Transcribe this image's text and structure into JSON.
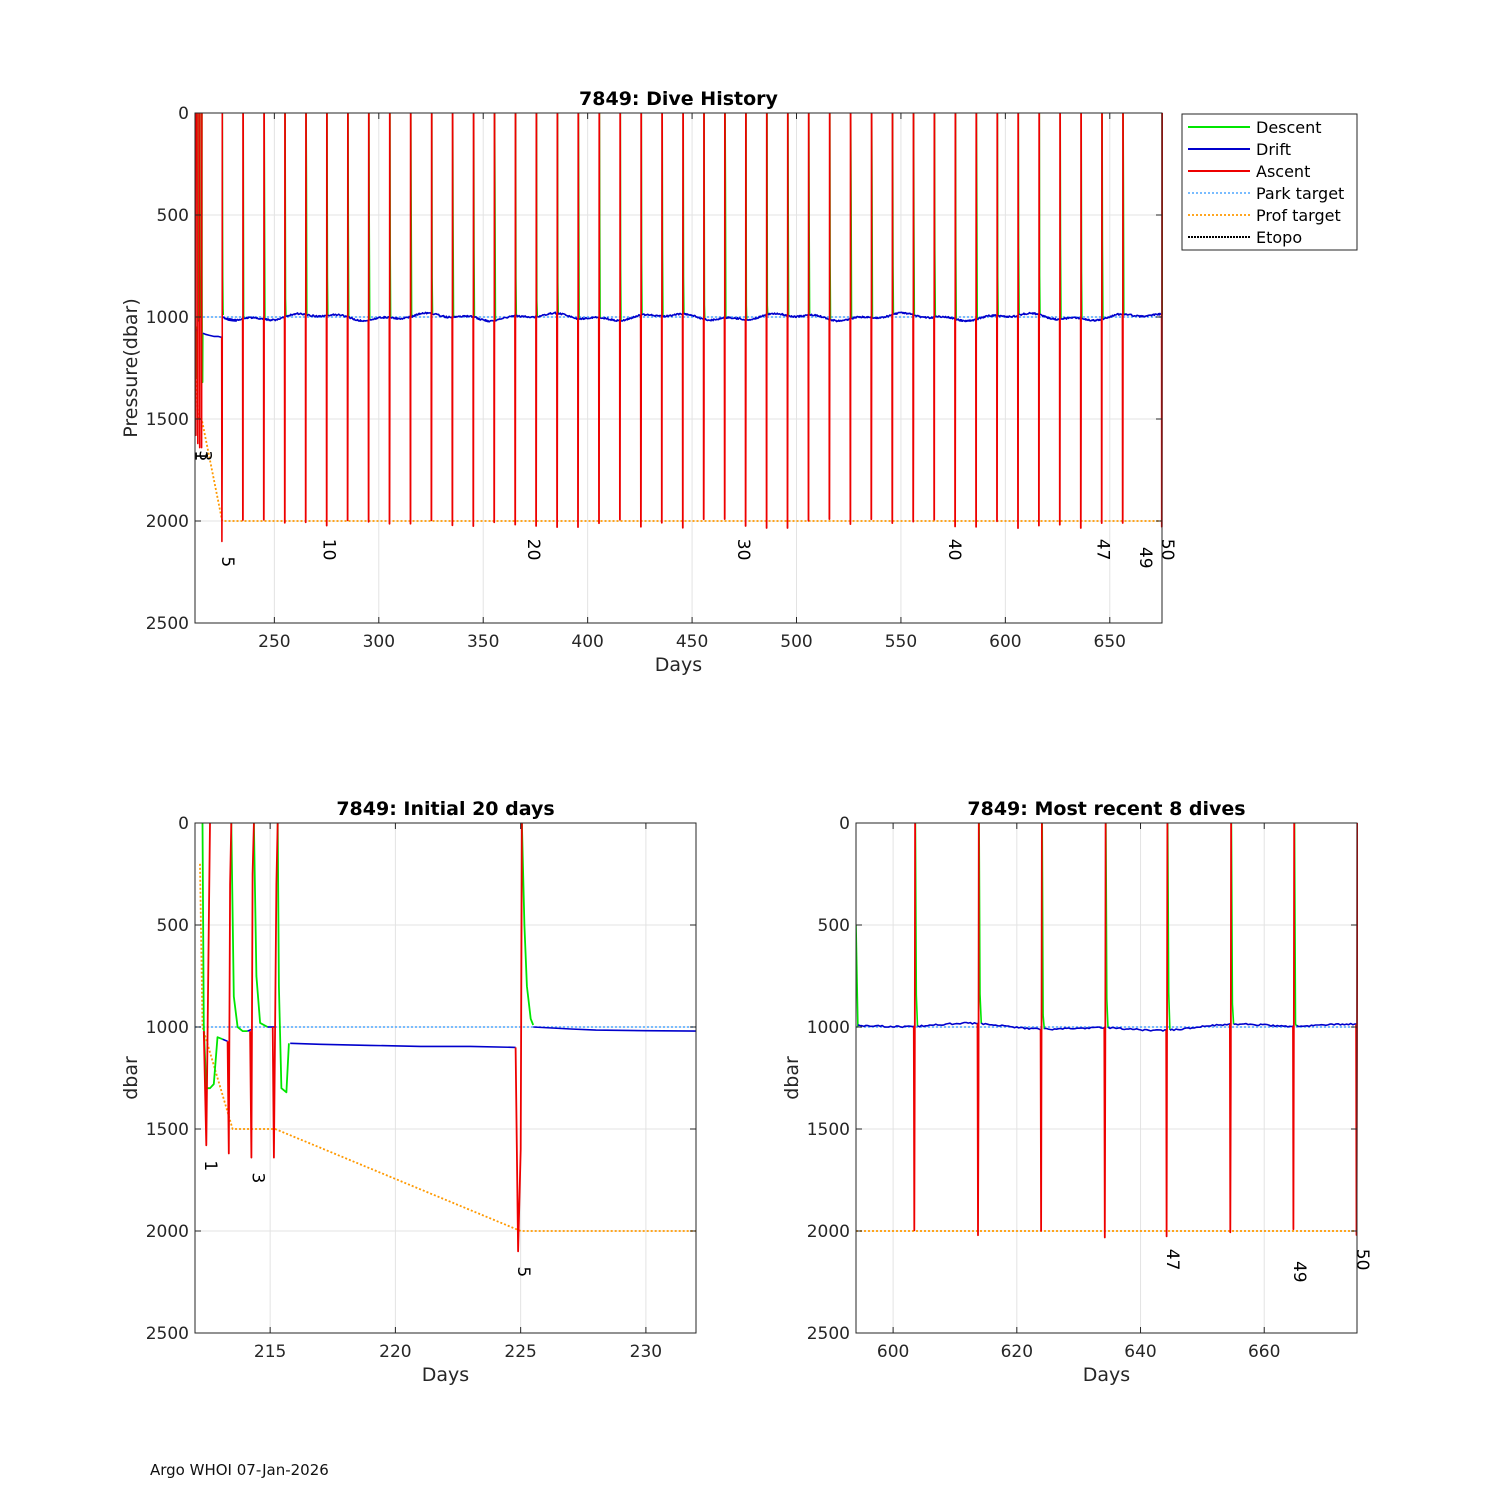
{
  "footer": "Argo WHOI 07-Jan-2026",
  "colors": {
    "descent": "#00e600",
    "drift": "#0000cc",
    "ascent": "#ee0000",
    "park": "#4da6ff",
    "prof": "#ff9900",
    "etopo": "#000000",
    "grid": "#e3e3e3",
    "axis": "#262626"
  },
  "legend": [
    "Descent",
    "Drift",
    "Ascent",
    "Park target",
    "Prof target",
    "Etopo"
  ],
  "chart_data": [
    {
      "id": "history",
      "type": "line",
      "title": "7849: Dive History",
      "xlabel": "Days",
      "ylabel": "Pressure(dbar)",
      "xlim": [
        212,
        675
      ],
      "ylim": [
        0,
        2500
      ],
      "y_reversed": true,
      "xticks": [
        250,
        300,
        350,
        400,
        450,
        500,
        550,
        600,
        650
      ],
      "yticks": [
        0,
        500,
        1000,
        1500,
        2000,
        2500
      ],
      "park_target": [
        [
          212,
          1000
        ],
        [
          675,
          1000
        ]
      ],
      "prof_target": [
        [
          212,
          1000
        ],
        [
          213.5,
          1500
        ],
        [
          215.2,
          1500
        ],
        [
          225,
          2000
        ],
        [
          675,
          2000
        ]
      ],
      "dive_labels": [
        {
          "label": "1",
          "day": 212.3,
          "depth": 1680
        },
        {
          "label": "3",
          "day": 214.2,
          "depth": 1680
        },
        {
          "label": "5",
          "day": 225,
          "depth": 2200
        },
        {
          "label": "10",
          "day": 273.5,
          "depth": 2140
        },
        {
          "label": "20",
          "day": 371.5,
          "depth": 2140
        },
        {
          "label": "30",
          "day": 472,
          "depth": 2140
        },
        {
          "label": "40",
          "day": 573,
          "depth": 2140
        },
        {
          "label": "47",
          "day": 644,
          "depth": 2140
        },
        {
          "label": "49",
          "day": 664.5,
          "depth": 2180
        },
        {
          "label": "50",
          "day": 675,
          "depth": 2140
        }
      ]
    },
    {
      "id": "initial",
      "type": "line",
      "title": "7849: Initial 20 days",
      "xlabel": "Days",
      "ylabel": "dbar",
      "xlim": [
        212,
        232
      ],
      "ylim": [
        0,
        2500
      ],
      "y_reversed": true,
      "xticks": [
        215,
        220,
        225,
        230
      ],
      "yticks": [
        0,
        500,
        1000,
        1500,
        2000,
        2500
      ],
      "park_target": [
        [
          212,
          1000
        ],
        [
          232,
          1000
        ]
      ],
      "prof_target": [
        [
          212.2,
          200
        ],
        [
          212.3,
          1000
        ],
        [
          213.5,
          1500
        ],
        [
          215.2,
          1500
        ],
        [
          225,
          2000
        ],
        [
          232,
          2000
        ]
      ],
      "descent_segments": [
        [
          [
            212.3,
            0
          ],
          [
            212.35,
            1000
          ],
          [
            212.45,
            1300
          ],
          [
            212.6,
            1300
          ],
          [
            212.75,
            1280
          ],
          [
            212.9,
            1050
          ],
          [
            213.1,
            1060
          ]
        ],
        [
          [
            213.45,
            0
          ],
          [
            213.55,
            850
          ],
          [
            213.7,
            1000
          ],
          [
            213.9,
            1020
          ],
          [
            214.1,
            1020
          ]
        ],
        [
          [
            214.35,
            0
          ],
          [
            214.45,
            750
          ],
          [
            214.6,
            980
          ],
          [
            214.9,
            1000
          ]
        ],
        [
          [
            215.3,
            0
          ],
          [
            215.35,
            800
          ],
          [
            215.45,
            1300
          ],
          [
            215.65,
            1320
          ],
          [
            215.75,
            1080
          ]
        ],
        [
          [
            225.05,
            0
          ],
          [
            225.15,
            500
          ],
          [
            225.25,
            800
          ],
          [
            225.4,
            960
          ],
          [
            225.5,
            990
          ]
        ]
      ],
      "drift_segments": [
        [
          [
            213.1,
            1060
          ],
          [
            213.3,
            1070
          ]
        ],
        [
          [
            214.1,
            1020
          ],
          [
            214.3,
            1010
          ]
        ],
        [
          [
            214.9,
            1000
          ],
          [
            215.2,
            1000
          ]
        ],
        [
          [
            215.8,
            1080
          ],
          [
            217,
            1085
          ],
          [
            219,
            1090
          ],
          [
            221,
            1095
          ],
          [
            223,
            1095
          ],
          [
            224.8,
            1100
          ]
        ],
        [
          [
            225.5,
            1000
          ],
          [
            227,
            1010
          ],
          [
            228,
            1015
          ],
          [
            230,
            1018
          ],
          [
            232,
            1020
          ]
        ]
      ],
      "ascent_segments": [
        [
          [
            212.35,
            1020
          ],
          [
            212.45,
            1580
          ],
          [
            212.55,
            500
          ],
          [
            212.6,
            0
          ]
        ],
        [
          [
            213.3,
            1070
          ],
          [
            213.35,
            1620
          ],
          [
            213.4,
            300
          ],
          [
            213.45,
            0
          ]
        ],
        [
          [
            214.2,
            1020
          ],
          [
            214.25,
            1640
          ],
          [
            214.3,
            250
          ],
          [
            214.35,
            0
          ]
        ],
        [
          [
            215.1,
            1000
          ],
          [
            215.15,
            1640
          ],
          [
            215.25,
            300
          ],
          [
            215.3,
            0
          ]
        ],
        [
          [
            224.8,
            1100
          ],
          [
            224.9,
            2100
          ],
          [
            225.0,
            1600
          ],
          [
            225.05,
            0
          ]
        ]
      ],
      "dive_labels": [
        {
          "label": "1",
          "day": 212.4,
          "depth": 1680
        },
        {
          "label": "3",
          "day": 214.3,
          "depth": 1740
        },
        {
          "label": "5",
          "day": 224.9,
          "depth": 2200
        }
      ]
    },
    {
      "id": "recent",
      "type": "line",
      "title": "7849: Most recent 8 dives",
      "xlabel": "Days",
      "ylabel": "dbar",
      "xlim": [
        594,
        675
      ],
      "ylim": [
        0,
        2500
      ],
      "y_reversed": true,
      "xticks": [
        600,
        620,
        640,
        660
      ],
      "yticks": [
        0,
        500,
        1000,
        1500,
        2000,
        2500
      ],
      "park_target": [
        [
          594,
          1000
        ],
        [
          675,
          1000
        ]
      ],
      "prof_target": [
        [
          594,
          2000
        ],
        [
          675,
          2000
        ]
      ],
      "dive_days": [
        603.5,
        613.8,
        624,
        634.3,
        644.3,
        654.6,
        664.8,
        675
      ],
      "dive_labels": [
        {
          "label": "47",
          "day": 644.3,
          "depth": 2140
        },
        {
          "label": "49",
          "day": 664.8,
          "depth": 2200
        },
        {
          "label": "50",
          "day": 675,
          "depth": 2140
        }
      ]
    }
  ]
}
